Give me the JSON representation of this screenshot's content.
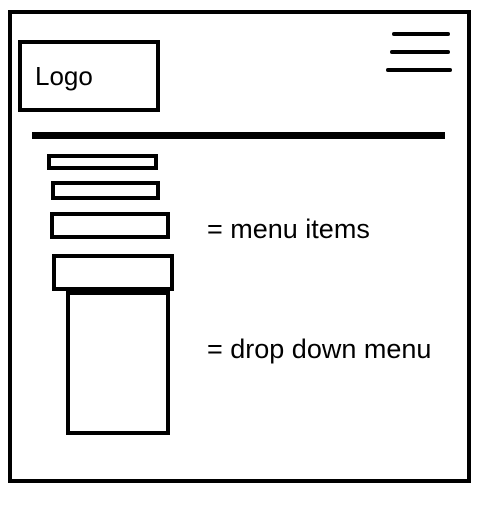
{
  "header": {
    "logo_text": "Logo"
  },
  "annotations": {
    "menu_items_label": "= menu items",
    "dropdown_label": "= drop down menu"
  }
}
